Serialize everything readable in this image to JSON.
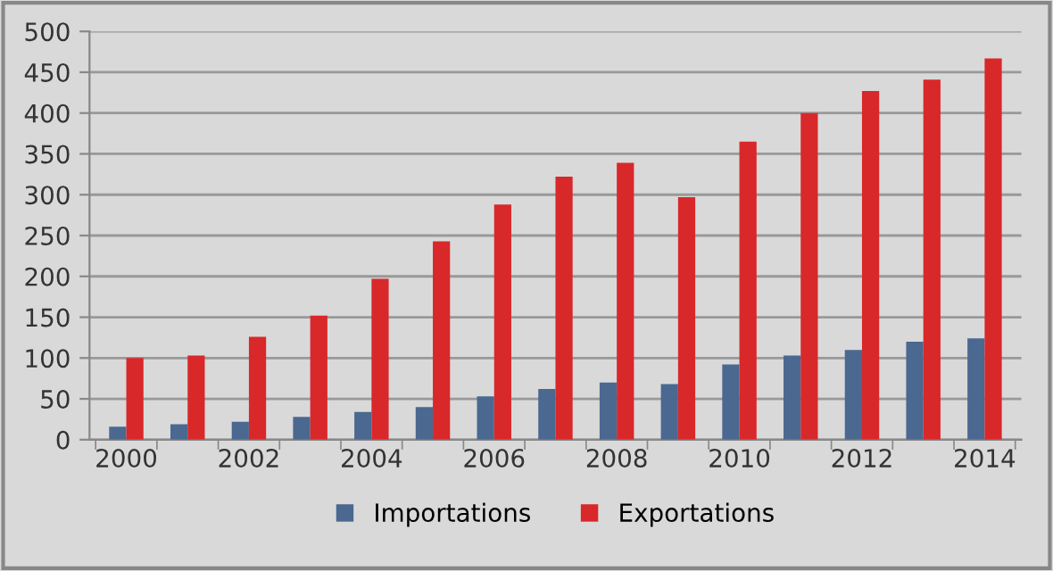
{
  "chart_data": {
    "type": "bar",
    "categories": [
      "2000",
      null,
      "2002",
      null,
      "2004",
      null,
      "2006",
      null,
      "2008",
      null,
      "2010",
      null,
      "2012",
      null,
      "2014"
    ],
    "series": [
      {
        "name": "Importations",
        "color": "#4a6890",
        "values": [
          16,
          19,
          22,
          28,
          34,
          40,
          53,
          62,
          70,
          68,
          92,
          103,
          110,
          120,
          124
        ]
      },
      {
        "name": "Exportations",
        "color": "#d9282a",
        "values": [
          100,
          103,
          126,
          152,
          197,
          243,
          288,
          322,
          339,
          297,
          365,
          400,
          427,
          441,
          467
        ]
      }
    ],
    "ylim": [
      0,
      500
    ],
    "yticks": [
      0,
      50,
      100,
      150,
      200,
      250,
      300,
      350,
      400,
      450,
      500
    ],
    "grid": "y",
    "legend": "bottom"
  }
}
